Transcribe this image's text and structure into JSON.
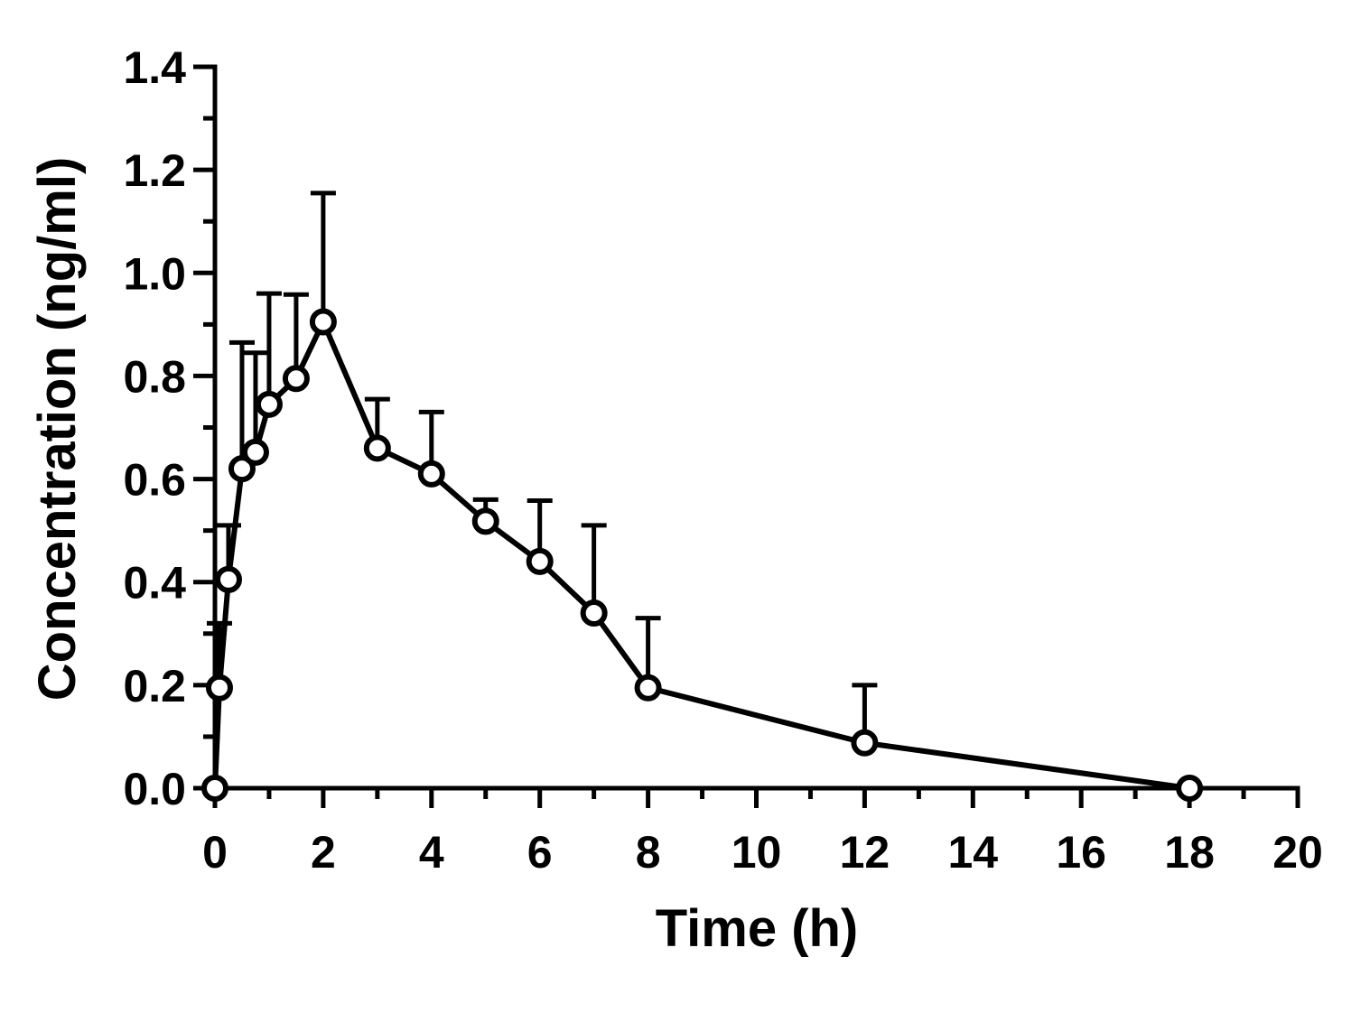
{
  "chart_data": {
    "type": "line",
    "title": "",
    "xlabel": "Time (h)",
    "ylabel": "Concentration (ng/ml)",
    "xlim": [
      0,
      20
    ],
    "ylim": [
      0,
      1.4
    ],
    "x_ticks": [
      "0",
      "2",
      "4",
      "6",
      "8",
      "10",
      "12",
      "14",
      "16",
      "18",
      "20"
    ],
    "y_ticks": [
      "0.0",
      "0.2",
      "0.4",
      "0.6",
      "0.8",
      "1.0",
      "1.2",
      "1.4"
    ],
    "grid": false,
    "legend": "none",
    "marker": "open-circle",
    "color": "#000000",
    "series": [
      {
        "x": [
          0,
          0.083,
          0.25,
          0.5,
          0.75,
          1,
          1.5,
          2,
          3,
          4,
          5,
          6,
          7,
          8,
          12,
          18
        ],
        "y": [
          0.0,
          0.195,
          0.405,
          0.62,
          0.652,
          0.745,
          0.795,
          0.905,
          0.66,
          0.61,
          0.518,
          0.44,
          0.34,
          0.195,
          0.088,
          0.0
        ],
        "error_upper": [
          0.0,
          0.32,
          0.51,
          0.865,
          0.845,
          0.96,
          0.958,
          1.155,
          0.755,
          0.73,
          0.56,
          0.558,
          0.51,
          0.33,
          0.2,
          0.0
        ]
      }
    ]
  }
}
